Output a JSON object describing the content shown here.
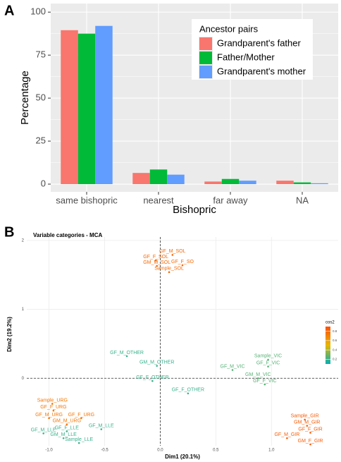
{
  "chart_data": [
    {
      "type": "bar",
      "panel_label": "A",
      "x_label": "Bishopric",
      "y_label": "Percentage",
      "categories": [
        "same bishopric",
        "nearest",
        "far away",
        "NA"
      ],
      "series": [
        {
          "name": "Grandparent's father",
          "color": "#F8766D",
          "values": [
            89.5,
            6.5,
            1.5,
            2
          ]
        },
        {
          "name": "Father/Mother",
          "color": "#00BA38",
          "values": [
            87.5,
            8.5,
            3,
            1
          ]
        },
        {
          "name": "Grandparent's mother",
          "color": "#619CFF",
          "values": [
            92,
            5.5,
            2,
            0.5
          ]
        }
      ],
      "legend_title": "Ancestor pairs",
      "legend_position": "inside-top-right",
      "ylim": [
        -4.5,
        105
      ],
      "yticks": [
        0,
        25,
        50,
        75,
        100
      ],
      "grid": true
    },
    {
      "type": "scatter",
      "panel_label": "B",
      "title": "Variable categories - MCA",
      "x_label": "Dim1 (20.1%)",
      "y_label": "Dim2 (19.2%)",
      "xlim": [
        -1.2,
        1.6
      ],
      "ylim": [
        -0.98,
        2.05
      ],
      "xticks": [
        {
          "value": -1,
          "label": "-1.0"
        },
        {
          "value": -0.5,
          "label": "-0.5"
        },
        {
          "value": 0,
          "label": "0.0"
        },
        {
          "value": 0.5,
          "label": "0.5"
        },
        {
          "value": 1,
          "label": "1.0"
        }
      ],
      "yticks": [
        0,
        1,
        2
      ],
      "grid": true,
      "color_title": "cos2",
      "color_lim": [
        0.1,
        0.9
      ],
      "color_ticks": [
        0.2,
        0.4,
        0.6,
        0.8
      ],
      "palette": [
        "#00AFBB",
        "#E7B800",
        "#FC4E07"
      ],
      "points": [
        {
          "label": "GF_M_SOL",
          "x": 0.11,
          "y": 1.79,
          "cos2": 0.8
        },
        {
          "label": "GF_F_SOL",
          "x": -0.04,
          "y": 1.71,
          "cos2": 0.8
        },
        {
          "label": "GM_M_SOL",
          "x": -0.03,
          "y": 1.63,
          "cos2": 0.8
        },
        {
          "label": "GF_F_SO",
          "x": 0.2,
          "y": 1.64,
          "cos2": 0.8
        },
        {
          "label": "Sample_SOL",
          "x": 0.08,
          "y": 1.54,
          "cos2": 0.8
        },
        {
          "label": "GF_M_OTHER",
          "x": -0.3,
          "y": 0.32,
          "cos2": 0.2
        },
        {
          "label": "GM_M_OTHER",
          "x": -0.03,
          "y": 0.18,
          "cos2": 0.2
        },
        {
          "label": "GF_F_OTHER",
          "x": -0.07,
          "y": -0.04,
          "cos2": 0.2
        },
        {
          "label": "GF_F_OTHER",
          "x": 0.25,
          "y": -0.22,
          "cos2": 0.2
        },
        {
          "label": "Sample_VIC",
          "x": 0.97,
          "y": 0.27,
          "cos2": 0.25
        },
        {
          "label": "GF_F_VIC",
          "x": 0.97,
          "y": 0.17,
          "cos2": 0.25
        },
        {
          "label": "GF_M_VIC",
          "x": 0.65,
          "y": 0.12,
          "cos2": 0.25
        },
        {
          "label": "GM_M_VIC",
          "x": 0.88,
          "y": 0.0,
          "cos2": 0.25
        },
        {
          "label": "GF_F_VIC",
          "x": 0.94,
          "y": -0.09,
          "cos2": 0.25
        },
        {
          "label": "Sample_URG",
          "x": -0.97,
          "y": -0.37,
          "cos2": 0.75
        },
        {
          "label": "GF_F_URG",
          "x": -0.96,
          "y": -0.47,
          "cos2": 0.75
        },
        {
          "label": "GF_M_URG",
          "x": -1.0,
          "y": -0.58,
          "cos2": 0.75
        },
        {
          "label": "GF_F_URG",
          "x": -0.71,
          "y": -0.58,
          "cos2": 0.75
        },
        {
          "label": "GM_M_URG",
          "x": -0.84,
          "y": -0.67,
          "cos2": 0.75
        },
        {
          "label": "GF_M_LLE",
          "x": -0.53,
          "y": -0.74,
          "cos2": 0.2
        },
        {
          "label": "GF_F_LLE",
          "x": -0.84,
          "y": -0.77,
          "cos2": 0.2
        },
        {
          "label": "GF_M_LLE",
          "x": -1.05,
          "y": -0.8,
          "cos2": 0.2
        },
        {
          "label": "GM_M_LLE",
          "x": -0.87,
          "y": -0.87,
          "cos2": 0.2
        },
        {
          "label": "Sample_LLE",
          "x": -0.73,
          "y": -0.94,
          "cos2": 0.2
        },
        {
          "label": "Sample_GIR",
          "x": 1.3,
          "y": -0.6,
          "cos2": 0.85
        },
        {
          "label": "GM_M_GIR",
          "x": 1.32,
          "y": -0.69,
          "cos2": 0.85
        },
        {
          "label": "GF_F_GIR",
          "x": 1.35,
          "y": -0.79,
          "cos2": 0.85
        },
        {
          "label": "GF_M_GIR",
          "x": 1.14,
          "y": -0.87,
          "cos2": 0.85
        },
        {
          "label": "GM_F_GIR",
          "x": 1.35,
          "y": -0.96,
          "cos2": 0.85
        }
      ]
    }
  ]
}
